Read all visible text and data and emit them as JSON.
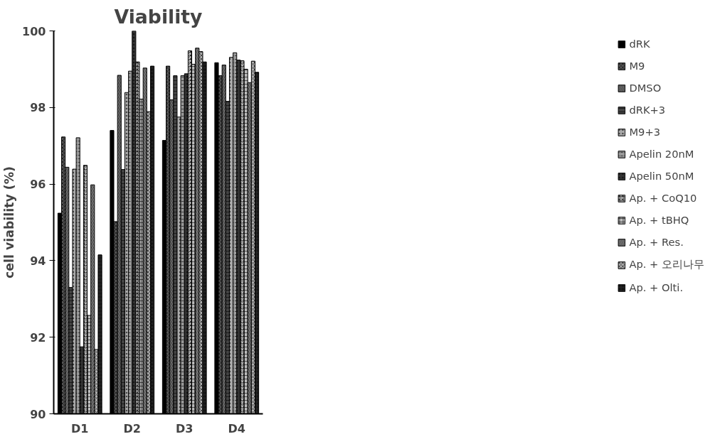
{
  "chart_data": {
    "type": "bar",
    "title": "Viability",
    "ylabel": "cell viability (%)",
    "categories": [
      "D1",
      "D2",
      "D3",
      "D4"
    ],
    "ylim": [
      90,
      100
    ],
    "yticks": [
      90,
      92,
      94,
      96,
      98,
      100
    ],
    "grid": false,
    "legend": "right",
    "series": [
      {
        "name": "dRK",
        "color": "#000000",
        "values": [
          95.24,
          97.4,
          97.14,
          99.17
        ]
      },
      {
        "name": "M9",
        "color": "#555555",
        "values": [
          97.23,
          95.02,
          99.08,
          98.83
        ]
      },
      {
        "name": "DMSO",
        "color": "#777777",
        "values": [
          96.44,
          98.84,
          98.2,
          99.11
        ]
      },
      {
        "name": "dRK+3",
        "color": "#444444",
        "values": [
          93.3,
          96.38,
          98.83,
          98.16
        ]
      },
      {
        "name": "M9+3",
        "color": "#aaaaaa",
        "values": [
          96.39,
          98.39,
          97.75,
          99.31
        ]
      },
      {
        "name": "Apelin 20nM",
        "color": "#999999",
        "values": [
          97.21,
          98.95,
          98.83,
          99.43
        ]
      },
      {
        "name": "Apelin 50nM",
        "color": "#333333",
        "values": [
          91.75,
          100,
          98.88,
          99.24
        ]
      },
      {
        "name": "Ap. + CoQ10",
        "color": "#cccccc",
        "values": [
          96.49,
          99.19,
          99.48,
          99.22
        ]
      },
      {
        "name": "Ap. + tBHQ",
        "color": "#bbbbbb",
        "values": [
          92.57,
          98.22,
          99.13,
          99.0
        ]
      },
      {
        "name": "Ap. + Res.",
        "color": "#888888",
        "values": [
          95.98,
          99.03,
          99.55,
          98.65
        ]
      },
      {
        "name": "Ap. + 오리나무",
        "color": "#b0b0b0",
        "values": [
          91.68,
          97.89,
          99.46,
          99.21
        ]
      },
      {
        "name": "Ap. + Olti.",
        "color": "#222222",
        "values": [
          94.15,
          99.08,
          99.19,
          98.92
        ]
      }
    ]
  }
}
